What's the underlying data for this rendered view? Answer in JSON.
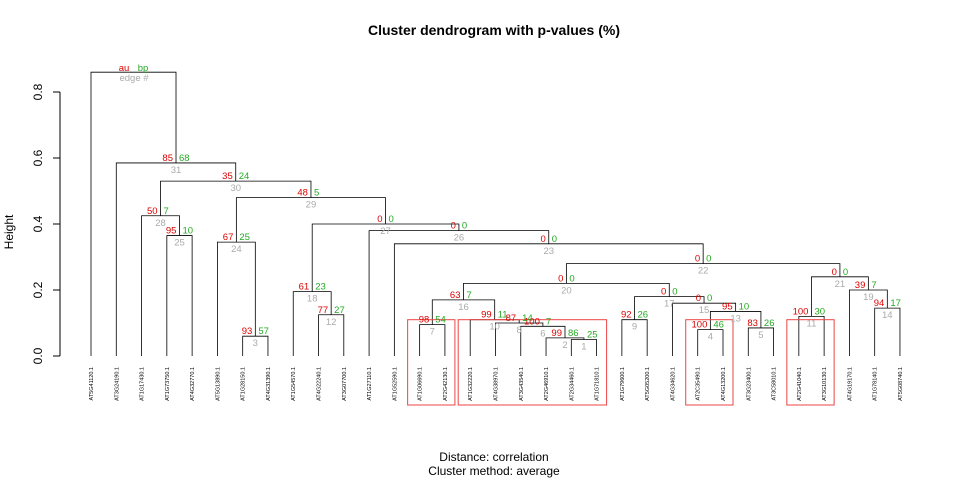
{
  "title": "Cluster dendrogram with p-values (%)",
  "footer": {
    "distance": "Distance:  correlation",
    "method": "Cluster method: average"
  },
  "legend": {
    "au": "au",
    "bp": "bp",
    "edge": "edge #"
  },
  "colors": {
    "au": "#dd0000",
    "bp": "#22aa22",
    "edge": "#aaaaaa",
    "box": "#ee4444"
  },
  "chart_data": {
    "type": "dendrogram",
    "title": "Cluster dendrogram with p-values (%)",
    "ylabel": "Height",
    "ylim": [
      0,
      0.9
    ],
    "yticks": [
      0.0,
      0.2,
      0.4,
      0.6,
      0.8
    ],
    "yticklabels": [
      "0.0",
      "0.2",
      "0.4",
      "0.6",
      "0.8"
    ],
    "leaves": [
      "AT5G41120.1",
      "AT3G24190.1",
      "AT1G17430.1",
      "AT1G73750.1",
      "AT4G32770.1",
      "AT5G13890.1",
      "AT1G28150.1",
      "AT4G31390.1",
      "AT1G54570.1",
      "AT4G22240.1",
      "AT3G07700.1",
      "AT1G27110.1",
      "AT1G52590.1",
      "AT1G06690.1",
      "AT2G42130.1",
      "AT1G32220.1",
      "AT4G38970.1",
      "AT3G43540.1",
      "AT2G46910.1",
      "AT2G34460.1",
      "AT1G71810.1",
      "AT1G79600.1",
      "AT5G05200.1",
      "AT4G34620.1",
      "AT2C35490.1",
      "AT4G13200.1",
      "AT3G23400.1",
      "AT3C58010.1",
      "AT2G41040.1",
      "AT3G10130.1",
      "AT4G19170.1",
      "AT1G78140.1",
      "AT5G08740.1"
    ],
    "merges": [
      {
        "edge": 1,
        "a": "L20",
        "b": "L21",
        "height": 0.05,
        "au": null,
        "bp": 25
      },
      {
        "edge": 2,
        "a": "L19",
        "b": "N1",
        "height": 0.055,
        "au": 99,
        "bp": 86
      },
      {
        "edge": 3,
        "a": "L7",
        "b": "L8",
        "height": 0.06,
        "au": 93,
        "bp": 57
      },
      {
        "edge": 4,
        "a": "L25",
        "b": "L26",
        "height": 0.08,
        "au": 100,
        "bp": 46
      },
      {
        "edge": 5,
        "a": "L27",
        "b": "L28",
        "height": 0.085,
        "au": 83,
        "bp": 26
      },
      {
        "edge": 6,
        "a": "L18",
        "b": "N2",
        "height": 0.09,
        "au": 100,
        "bp": 7
      },
      {
        "edge": 7,
        "a": "L14",
        "b": "L15",
        "height": 0.095,
        "au": 98,
        "bp": 54
      },
      {
        "edge": 8,
        "a": "L17",
        "b": "N6",
        "height": 0.1,
        "au": 87,
        "bp": 14
      },
      {
        "edge": 9,
        "a": "L22",
        "b": "L23",
        "height": 0.11,
        "au": 92,
        "bp": 26
      },
      {
        "edge": 10,
        "a": "L16",
        "b": "N8",
        "height": 0.11,
        "au": 99,
        "bp": 11
      },
      {
        "edge": 11,
        "a": "L29",
        "b": "L30",
        "height": 0.12,
        "au": 100,
        "bp": 30
      },
      {
        "edge": 12,
        "a": "L10",
        "b": "L11",
        "height": 0.125,
        "au": 77,
        "bp": 27
      },
      {
        "edge": 13,
        "a": "N4",
        "b": "N5",
        "height": 0.135,
        "au": 95,
        "bp": 10
      },
      {
        "edge": 14,
        "a": "L32",
        "b": "L33",
        "height": 0.145,
        "au": 94,
        "bp": 17
      },
      {
        "edge": 15,
        "a": "L24",
        "b": "N13",
        "height": 0.16,
        "au": 0,
        "bp": 0
      },
      {
        "edge": 16,
        "a": "N7",
        "b": "N10",
        "height": 0.17,
        "au": 63,
        "bp": 7
      },
      {
        "edge": 17,
        "a": "N9",
        "b": "N15",
        "height": 0.18,
        "au": 0,
        "bp": 0
      },
      {
        "edge": 18,
        "a": "L9",
        "b": "N12",
        "height": 0.195,
        "au": 61,
        "bp": 23
      },
      {
        "edge": 19,
        "a": "L31",
        "b": "N14",
        "height": 0.2,
        "au": 39,
        "bp": 7
      },
      {
        "edge": 20,
        "a": "N16",
        "b": "N17",
        "height": 0.22,
        "au": 0,
        "bp": 0
      },
      {
        "edge": 21,
        "a": "N11",
        "b": "N19",
        "height": 0.24,
        "au": 0,
        "bp": 0
      },
      {
        "edge": 22,
        "a": "N20",
        "b": "N21",
        "height": 0.28,
        "au": 0,
        "bp": 0
      },
      {
        "edge": 23,
        "a": "L13",
        "b": "N22",
        "height": 0.34,
        "au": 0,
        "bp": 0
      },
      {
        "edge": 24,
        "a": "L6",
        "b": "N3",
        "height": 0.345,
        "au": 67,
        "bp": 25
      },
      {
        "edge": 25,
        "a": "L4",
        "b": "L5",
        "height": 0.365,
        "au": 95,
        "bp": 10
      },
      {
        "edge": 26,
        "a": "L12",
        "b": "N23",
        "height": 0.38,
        "au": 0,
        "bp": 0
      },
      {
        "edge": 27,
        "a": "N18",
        "b": "N26",
        "height": 0.4,
        "au": 0,
        "bp": 0
      },
      {
        "edge": 28,
        "a": "L3",
        "b": "N25",
        "height": 0.425,
        "au": 50,
        "bp": 7
      },
      {
        "edge": 29,
        "a": "N24",
        "b": "N27",
        "height": 0.48,
        "au": 48,
        "bp": 5
      },
      {
        "edge": 30,
        "a": "N28",
        "b": "N29",
        "height": 0.53,
        "au": 35,
        "bp": 24
      },
      {
        "edge": 31,
        "a": "L2",
        "b": "N30",
        "height": 0.585,
        "au": 85,
        "bp": 68
      },
      {
        "edge": 32,
        "a": "L1",
        "b": "N31",
        "height": 0.86,
        "au": null,
        "bp": null
      }
    ],
    "highlight_boxes": [
      [
        14,
        15
      ],
      [
        16,
        21
      ],
      [
        25,
        26
      ],
      [
        29,
        30
      ]
    ]
  }
}
